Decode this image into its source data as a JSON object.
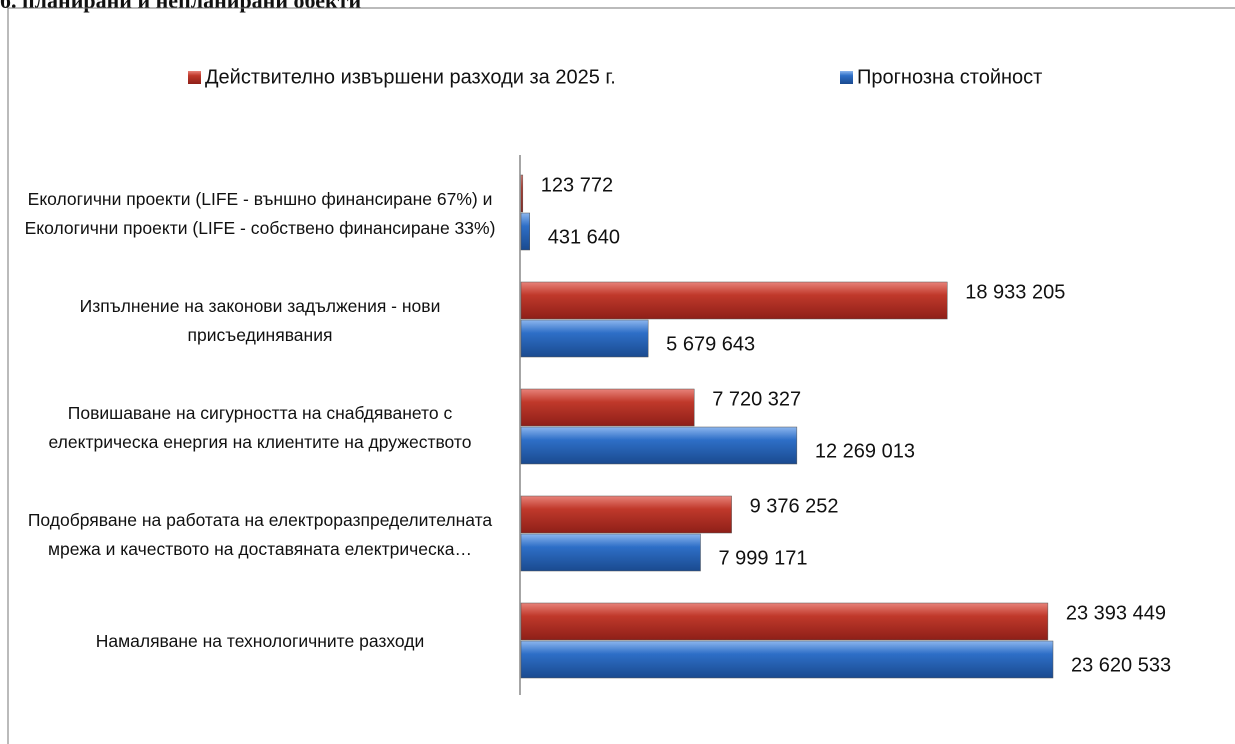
{
  "chart_data": {
    "type": "bar",
    "orientation": "horizontal",
    "title": "б. планирани и непланирани обекти",
    "categories": [
      "Екологични проекти (LIFE - външно финансиране 67%) и Екологични проекти (LIFE - собствено финансиране 33%)",
      "Изпълнение на законови задължения - нови присъединявания",
      "Повишаване на сигурността на снабдяването с електрическа енергия на клиентите на дружеството",
      "Подобряване на работата на електроразпределителната мрежа и качеството на доставяната електрическа…",
      "Намаляване на технологичните разходи"
    ],
    "series": [
      {
        "name": "Действително извършени разходи за 2025 г.",
        "color": "#c0392b",
        "values": [
          123772,
          18933205,
          7720327,
          9376252,
          23393449
        ],
        "value_labels": [
          "123 772",
          "18 933 205",
          "7 720 327",
          "9 376 252",
          "23 393 449"
        ]
      },
      {
        "name": "Прогнозна стойност",
        "color": "#2e6fc7",
        "values": [
          431640,
          5679643,
          12269013,
          7999171,
          23620533
        ],
        "value_labels": [
          "431 640",
          "5 679 643",
          "12 269 013",
          "7 999 171",
          "23 620 533"
        ]
      }
    ],
    "legend": "top"
  }
}
